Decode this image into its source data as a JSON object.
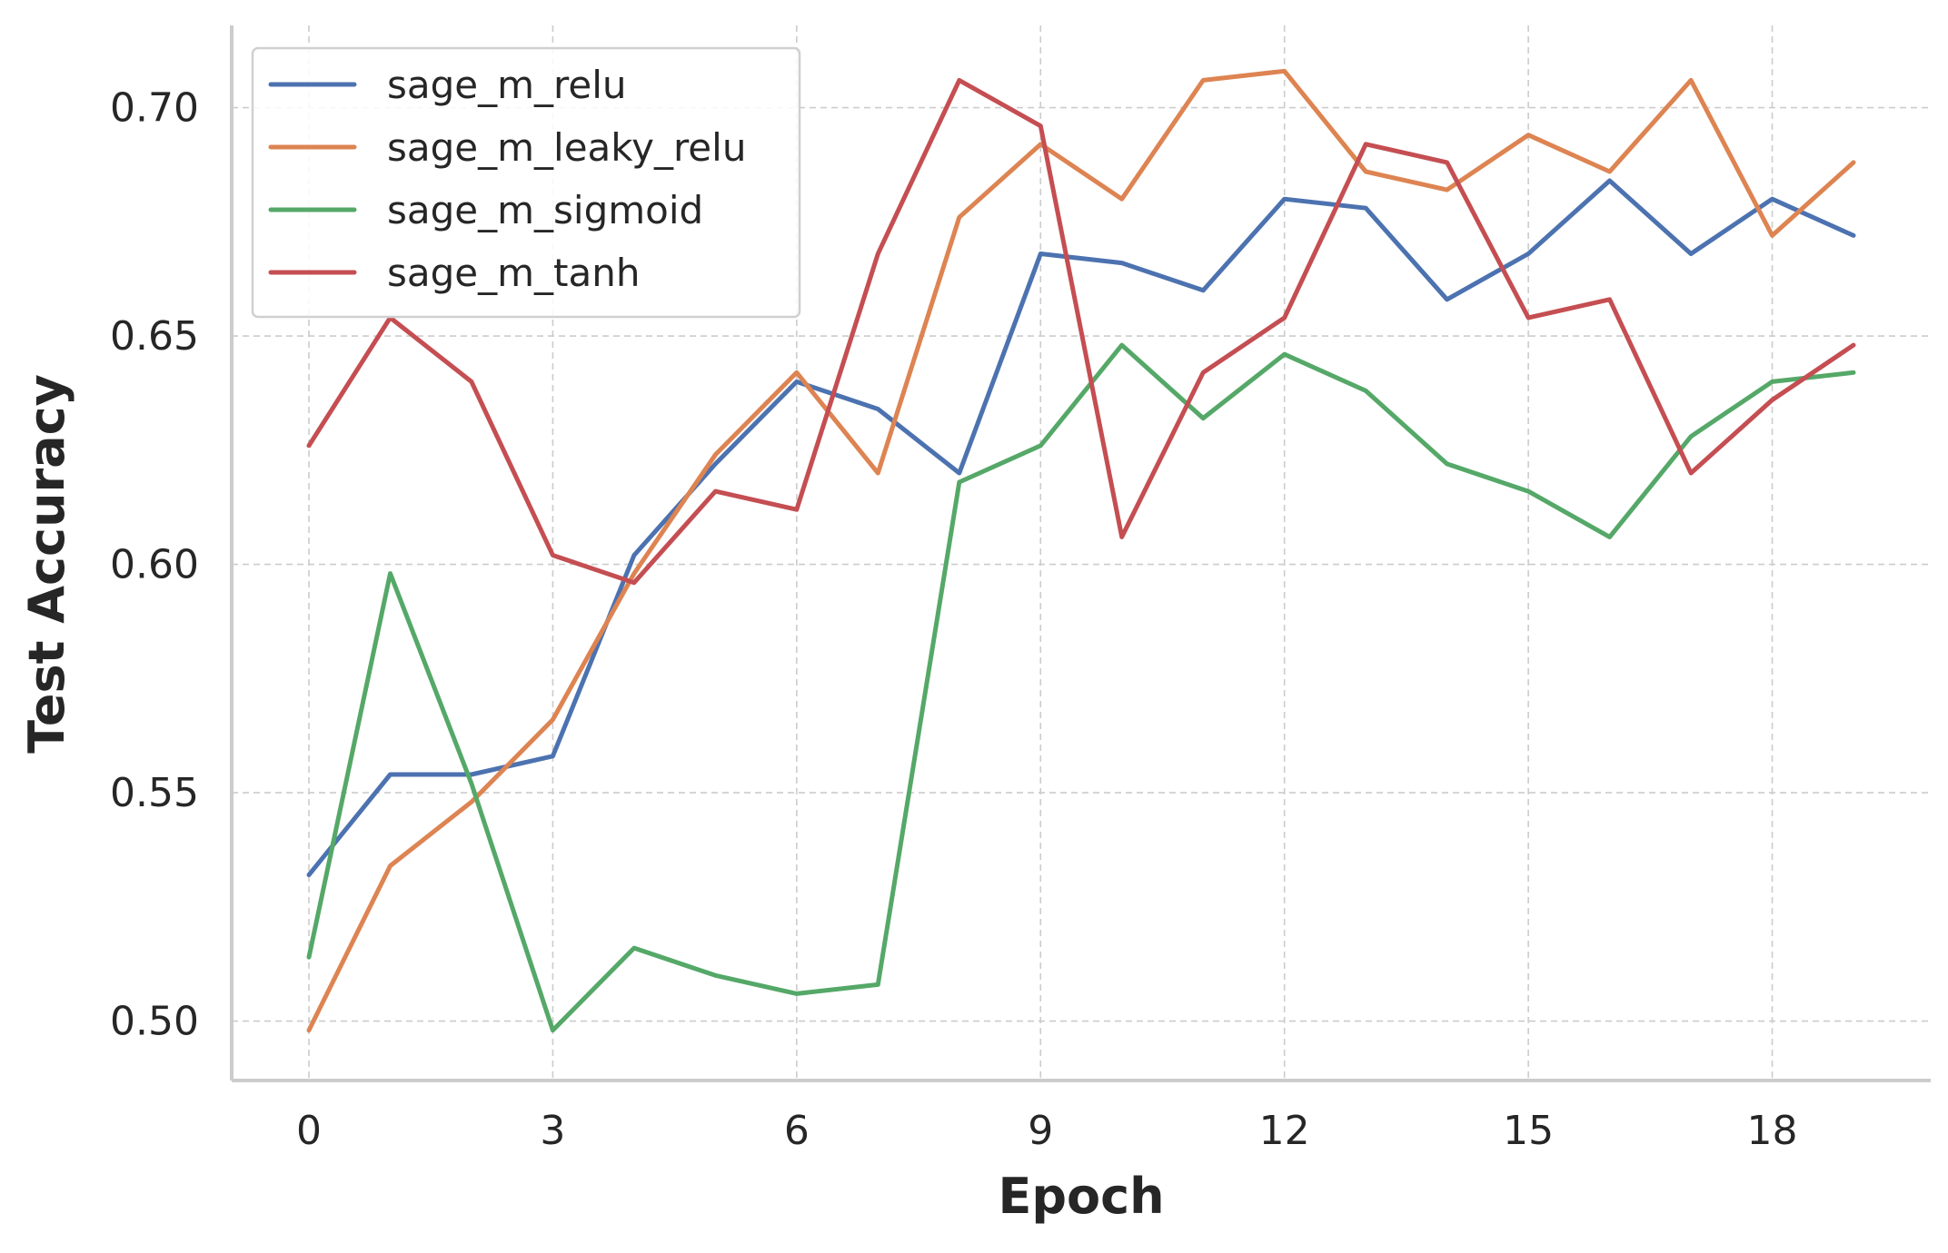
{
  "chart_data": {
    "type": "line",
    "title": "",
    "xlabel": "Epoch",
    "ylabel": "Test Accuracy",
    "xlim": [
      -0.95,
      19.95
    ],
    "ylim": [
      0.487,
      0.718
    ],
    "xticks": [
      0,
      3,
      6,
      9,
      12,
      15,
      18
    ],
    "yticks": [
      0.5,
      0.55,
      0.6,
      0.65,
      0.7
    ],
    "ytick_labels": [
      "0.50",
      "0.55",
      "0.60",
      "0.65",
      "0.70"
    ],
    "grid": true,
    "legend_position": "top-left",
    "x": [
      0,
      1,
      2,
      3,
      4,
      5,
      6,
      7,
      8,
      9,
      10,
      11,
      12,
      13,
      14,
      15,
      16,
      17,
      18,
      19
    ],
    "series": [
      {
        "name": "sage_m_relu",
        "color": "#4c72b0",
        "values": [
          0.532,
          0.554,
          0.554,
          0.558,
          0.602,
          0.622,
          0.64,
          0.634,
          0.62,
          0.668,
          0.666,
          0.66,
          0.68,
          0.678,
          0.658,
          0.668,
          0.684,
          0.668,
          0.68,
          0.672
        ]
      },
      {
        "name": "sage_m_leaky_relu",
        "color": "#dd8452",
        "values": [
          0.498,
          0.534,
          0.548,
          0.566,
          0.598,
          0.624,
          0.642,
          0.62,
          0.676,
          0.692,
          0.68,
          0.706,
          0.708,
          0.686,
          0.682,
          0.694,
          0.686,
          0.706,
          0.672,
          0.688
        ]
      },
      {
        "name": "sage_m_sigmoid",
        "color": "#55a868",
        "values": [
          0.514,
          0.598,
          0.552,
          0.498,
          0.516,
          0.51,
          0.506,
          0.508,
          0.618,
          0.626,
          0.648,
          0.632,
          0.646,
          0.638,
          0.622,
          0.616,
          0.606,
          0.628,
          0.64,
          0.642
        ]
      },
      {
        "name": "sage_m_tanh",
        "color": "#c44e52",
        "values": [
          0.626,
          0.654,
          0.64,
          0.602,
          0.596,
          0.616,
          0.612,
          0.668,
          0.706,
          0.696,
          0.606,
          0.642,
          0.654,
          0.692,
          0.688,
          0.654,
          0.658,
          0.62,
          0.636,
          0.648
        ]
      }
    ]
  }
}
